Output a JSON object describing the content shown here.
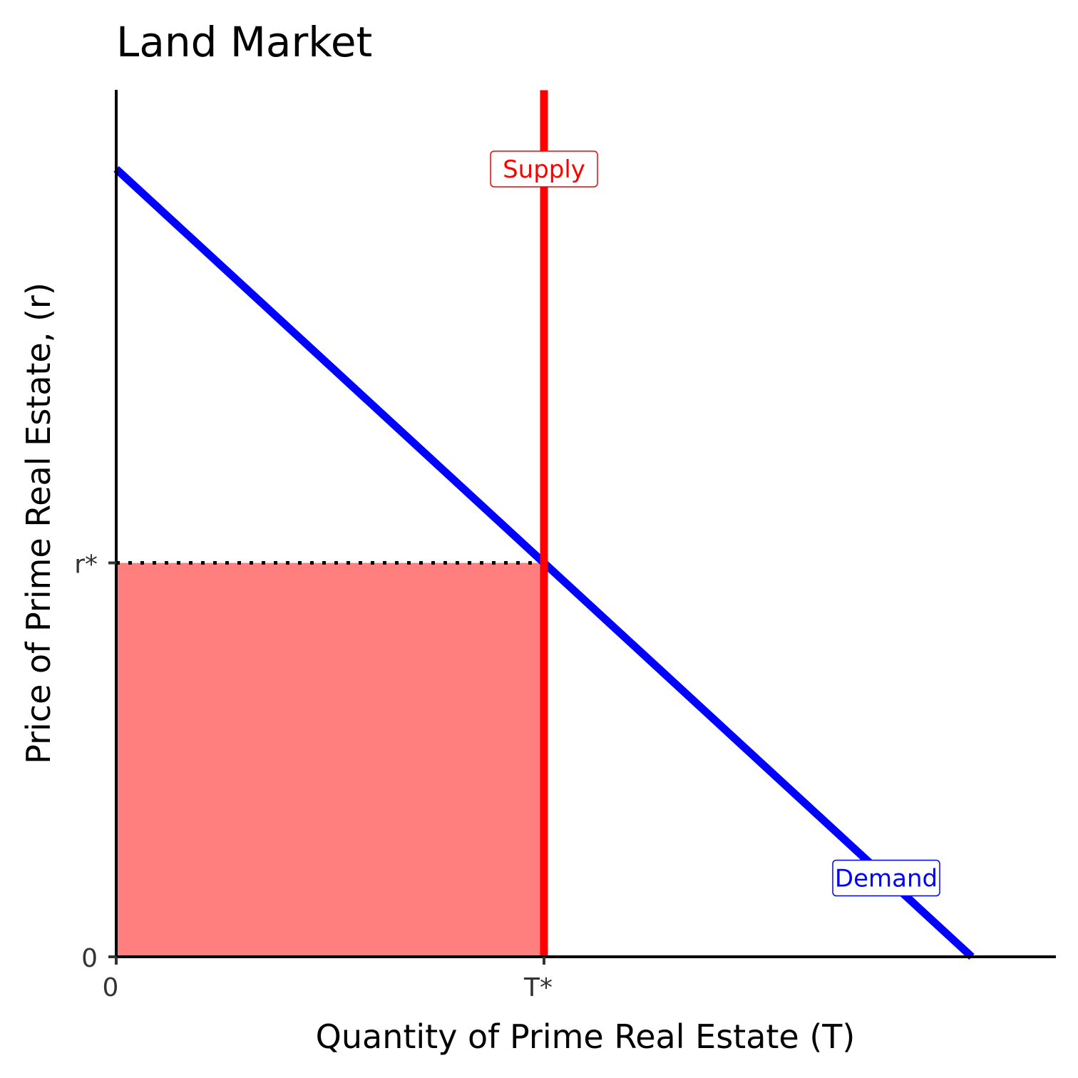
{
  "chart_data": {
    "type": "line",
    "title": "Land Market",
    "xlabel": "Quantity of Prime Real Estate (T)",
    "ylabel": "Price of Prime Real Estate, (r)",
    "xlim": [
      0,
      11
    ],
    "ylim": [
      0,
      11
    ],
    "x_ticks": [
      {
        "value": 0,
        "label": "0"
      },
      {
        "value": 5,
        "label": "T*"
      }
    ],
    "y_ticks": [
      {
        "value": 0,
        "label": "0"
      },
      {
        "value": 5,
        "label": "r*"
      }
    ],
    "series": [
      {
        "name": "Demand",
        "color": "#0000ff",
        "x": [
          0,
          10
        ],
        "y": [
          10,
          0
        ]
      },
      {
        "name": "Supply",
        "color": "#ff0000",
        "x": [
          5,
          5
        ],
        "y": [
          0,
          11
        ]
      }
    ],
    "annotations": [
      {
        "text": "Supply",
        "x": 5,
        "y": 10,
        "color": "#ff0000"
      },
      {
        "text": "Demand",
        "x": 9,
        "y": 1,
        "color": "#0000ff"
      }
    ],
    "shaded_region": {
      "x": [
        0,
        5
      ],
      "y": [
        0,
        5
      ],
      "color": "#ff7f7f"
    },
    "equilibrium": {
      "x": 5,
      "y": 5
    },
    "grid": false,
    "legend": "none"
  }
}
